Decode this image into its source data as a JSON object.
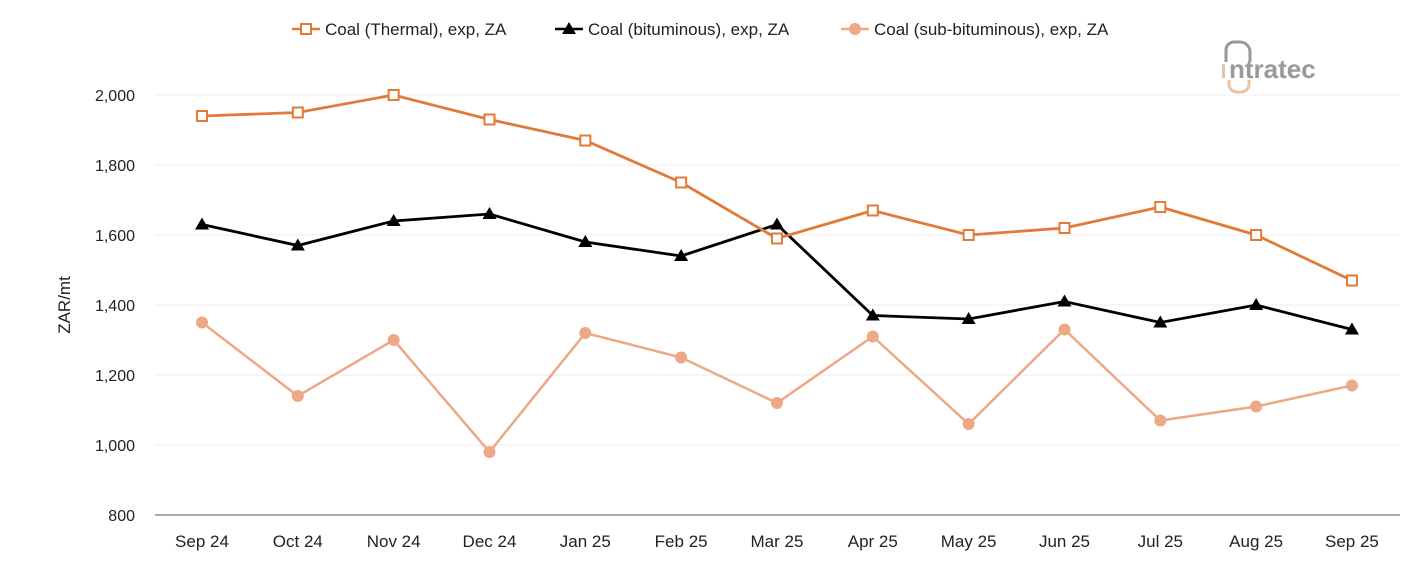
{
  "logo": {
    "text": "intratec"
  },
  "chart_data": {
    "type": "line",
    "title": "",
    "xlabel": "",
    "ylabel": "ZAR/mt",
    "ylim": [
      800,
      2000
    ],
    "yticks": [
      800,
      1000,
      1200,
      1400,
      1600,
      1800,
      2000
    ],
    "ytick_labels": [
      "800",
      "1,000",
      "1,200",
      "1,400",
      "1,600",
      "1,800",
      "2,000"
    ],
    "grid": "horizontal",
    "legend_position": "top",
    "categories": [
      "Sep 24",
      "Oct 24",
      "Nov 24",
      "Dec 24",
      "Jan 25",
      "Feb 25",
      "Mar 25",
      "Apr 25",
      "May 25",
      "Jun 25",
      "Jul 25",
      "Aug 25",
      "Sep 25"
    ],
    "series": [
      {
        "name": "Coal (Thermal), exp, ZA",
        "color": "#e07b39",
        "marker": "open-square",
        "values": [
          1940,
          1950,
          2000,
          1930,
          1870,
          1750,
          1590,
          1670,
          1600,
          1620,
          1680,
          1600,
          1470
        ]
      },
      {
        "name": "Coal (bituminous), exp, ZA",
        "color": "#000000",
        "marker": "triangle",
        "values": [
          1630,
          1570,
          1640,
          1660,
          1580,
          1540,
          1630,
          1370,
          1360,
          1410,
          1350,
          1400,
          1330
        ]
      },
      {
        "name": "Coal (sub-bituminous), exp, ZA",
        "color": "#eda886",
        "marker": "circle",
        "values": [
          1350,
          1140,
          1300,
          980,
          1320,
          1250,
          1120,
          1310,
          1060,
          1330,
          1070,
          1110,
          1170
        ]
      }
    ]
  }
}
